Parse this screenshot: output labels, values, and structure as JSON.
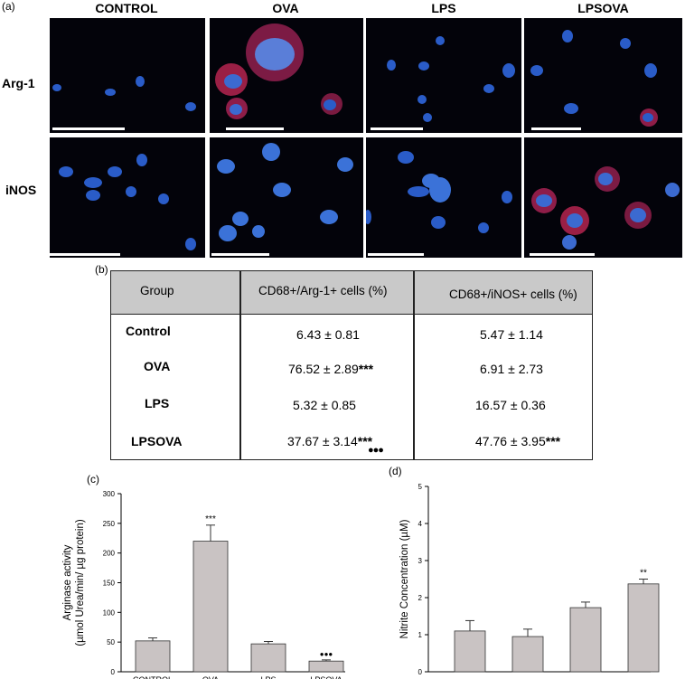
{
  "panel_a": {
    "letter": "(a)",
    "columns": [
      "CONTROL",
      "OVA",
      "LPS",
      "LPSOVA"
    ],
    "rows": [
      "Arg-1",
      "iNOS"
    ]
  },
  "panel_b": {
    "letter": "(b)",
    "headers": [
      "Group",
      "CD68+/Arg-1+ cells (%)",
      "CD68+/iNOS+ cells (%)"
    ],
    "rows": [
      {
        "group": "Control",
        "arg1": "6.43 ± 0.81",
        "arg1_mark": "",
        "inos": "5.47 ± 1.14",
        "inos_mark": ""
      },
      {
        "group": "OVA",
        "arg1": "76.52 ± 2.89",
        "arg1_mark": "***",
        "inos": "6.91 ± 2.73",
        "inos_mark": ""
      },
      {
        "group": "LPS",
        "arg1": "5.32 ± 0.85",
        "arg1_mark": "",
        "inos": "16.57 ± 0.36",
        "inos_mark": ""
      },
      {
        "group": "LPSOVA",
        "arg1": "37.67 ± 3.14",
        "arg1_mark": "***",
        "arg1_mark2": "●●●",
        "inos": "47.76 ± 3.95",
        "inos_mark": "***"
      }
    ]
  },
  "chart_data": [
    {
      "type": "bar",
      "panel": "(c)",
      "ylabel": "Arginase activity",
      "ylabel2": "(µmol Urea/min/ µg protein)",
      "ylim": [
        0,
        300
      ],
      "yticks": [
        "0",
        "50",
        "100",
        "150",
        "200",
        "250",
        "300"
      ],
      "xlabels": [
        "CONTROL",
        "OVA",
        "LPS",
        "LPSOVA"
      ],
      "values": [
        52,
        220,
        47,
        18
      ],
      "errors": [
        5,
        27,
        4,
        2
      ],
      "annotations": [
        "",
        "***",
        "",
        "●●●"
      ],
      "bar_color": "#c9c3c3"
    },
    {
      "type": "bar",
      "panel": "(d)",
      "ylabel": "Nitrite Concentration (µM)",
      "ylim": [
        0,
        5
      ],
      "yticks": [
        "0",
        "1",
        "2",
        "3",
        "4",
        "5"
      ],
      "values": [
        1.1,
        0.95,
        1.73,
        2.37
      ],
      "errors": [
        0.28,
        0.2,
        0.15,
        0.13
      ],
      "annotations": [
        "",
        "",
        "",
        "**"
      ],
      "bar_color": "#c9c3c3"
    }
  ]
}
